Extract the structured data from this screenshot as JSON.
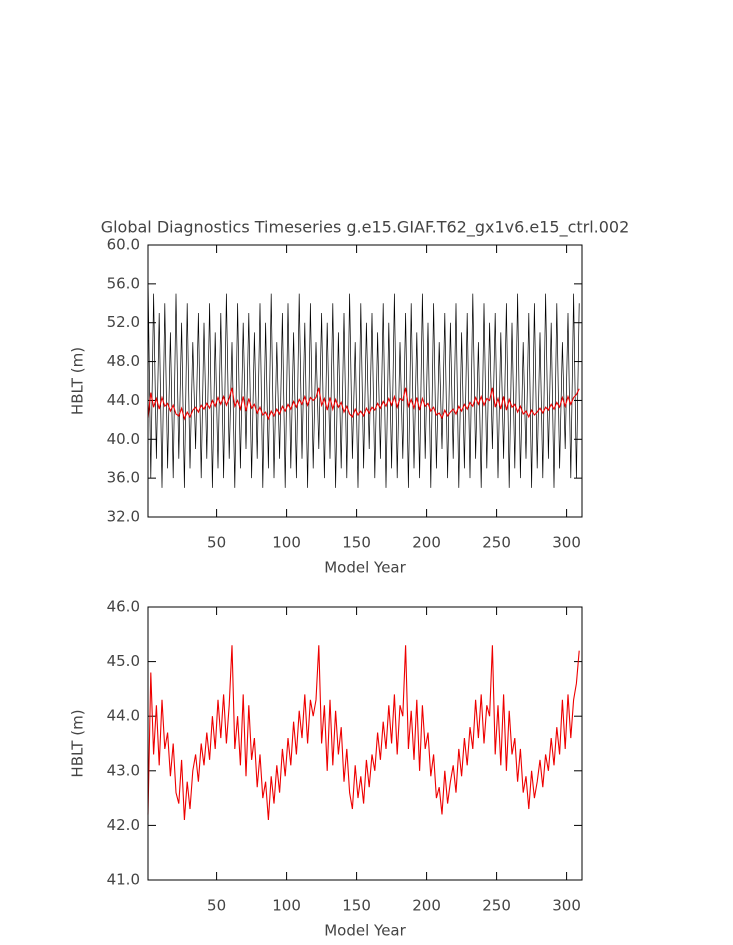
{
  "chart_data": [
    {
      "type": "line",
      "title": "Global Diagnostics Timeseries g.e15.GIAF.T62_gx1v6.e15_ctrl.002",
      "xlabel": "Model Year",
      "ylabel": "HBLT (m)",
      "xlim": [
        1,
        311
      ],
      "xticks": [
        50,
        100,
        150,
        200,
        250,
        300
      ],
      "ylim": [
        32,
        60
      ],
      "yticks": [
        {
          "value": 32,
          "label": "32.0"
        },
        {
          "value": 36,
          "label": "36.0"
        },
        {
          "value": 40,
          "label": "40.0"
        },
        {
          "value": 44,
          "label": "44.0"
        },
        {
          "value": 48,
          "label": "48.0"
        },
        {
          "value": 52,
          "label": "52.0"
        },
        {
          "value": 56,
          "label": "56.0"
        },
        {
          "value": 60,
          "label": "60.0"
        }
      ],
      "x": [
        1,
        3,
        5,
        7,
        9,
        11,
        13,
        15,
        17,
        19,
        21,
        23,
        25,
        27,
        29,
        31,
        33,
        35,
        37,
        39,
        41,
        43,
        45,
        47,
        49,
        51,
        53,
        55,
        57,
        59,
        61,
        63,
        65,
        67,
        69,
        71,
        73,
        75,
        77,
        79,
        81,
        83,
        85,
        87,
        89,
        91,
        93,
        95,
        97,
        99,
        101,
        103,
        105,
        107,
        109,
        111,
        113,
        115,
        117,
        119,
        121,
        123,
        125,
        127,
        129,
        131,
        133,
        135,
        137,
        139,
        141,
        143,
        145,
        147,
        149,
        151,
        153,
        155,
        157,
        159,
        161,
        163,
        165,
        167,
        169,
        171,
        173,
        175,
        177,
        179,
        181,
        183,
        185,
        187,
        189,
        191,
        193,
        195,
        197,
        199,
        201,
        203,
        205,
        207,
        209,
        211,
        213,
        215,
        217,
        219,
        221,
        223,
        225,
        227,
        229,
        231,
        233,
        235,
        237,
        239,
        241,
        243,
        245,
        247,
        249,
        251,
        253,
        255,
        257,
        259,
        261,
        263,
        265,
        267,
        269,
        271,
        273,
        275,
        277,
        279,
        281,
        283,
        285,
        287,
        289,
        291,
        293,
        295,
        297,
        299,
        301,
        303,
        305,
        307,
        309
      ],
      "series": [
        {
          "color": "#000000",
          "values": [
            57,
            36,
            55,
            38,
            53,
            35,
            54,
            37,
            51,
            36,
            55,
            38,
            52,
            35,
            54,
            37,
            50,
            39,
            53,
            36,
            52,
            38,
            54,
            35,
            51,
            37,
            53,
            36,
            55,
            38,
            50,
            35,
            54,
            37,
            52,
            39,
            53,
            36,
            51,
            38,
            54,
            35,
            52,
            37,
            55,
            36,
            50,
            38,
            53,
            35,
            54,
            37,
            51,
            36,
            55,
            38,
            52,
            35,
            54,
            37,
            50,
            39,
            53,
            36,
            52,
            38,
            54,
            35,
            51,
            37,
            53,
            36,
            55,
            38,
            50,
            35,
            54,
            37,
            52,
            39,
            53,
            36,
            51,
            38,
            54,
            35,
            52,
            37,
            55,
            36,
            50,
            38,
            53,
            35,
            54,
            37,
            51,
            36,
            55,
            38,
            52,
            35,
            54,
            37,
            50,
            39,
            53,
            36,
            52,
            38,
            54,
            35,
            51,
            37,
            53,
            36,
            55,
            38,
            50,
            35,
            54,
            37,
            52,
            39,
            53,
            36,
            51,
            38,
            54,
            35,
            52,
            37,
            55,
            36,
            50,
            38,
            53,
            35,
            54,
            37,
            51,
            36,
            55,
            38,
            52,
            35,
            54,
            37,
            50,
            39,
            53,
            36,
            55,
            36,
            54
          ]
        },
        {
          "color": "#ee0000",
          "values": [
            42.2,
            44.8,
            43.3,
            44.2,
            43.1,
            44.3,
            43.4,
            43.7,
            42.9,
            43.5,
            42.6,
            42.4,
            43.2,
            42.1,
            42.8,
            42.3,
            43.0,
            43.3,
            42.8,
            43.5,
            43.1,
            43.7,
            43.2,
            44.0,
            43.4,
            44.3,
            43.6,
            44.4,
            43.5,
            44.2,
            45.3,
            43.4,
            44.0,
            43.1,
            44.4,
            42.9,
            44.2,
            43.2,
            43.6,
            42.7,
            43.3,
            42.5,
            42.8,
            42.1,
            42.9,
            42.4,
            43.1,
            42.6,
            43.4,
            42.9,
            43.6,
            43.1,
            43.9,
            43.3,
            44.1,
            43.6,
            44.4,
            43.5,
            44.3,
            44.0,
            44.3,
            45.3,
            43.5,
            44.2,
            43.0,
            44.3,
            43.1,
            44.1,
            43.3,
            43.8,
            42.8,
            43.4,
            42.6,
            42.3,
            43.1,
            42.5,
            42.9,
            42.4,
            43.2,
            42.7,
            43.3,
            43.0,
            43.7,
            43.2,
            43.9,
            43.4,
            44.2,
            43.5,
            44.4,
            43.3,
            44.2,
            44.0,
            45.3,
            43.4,
            44.1,
            43.2,
            44.3,
            43.0,
            44.2,
            43.4,
            43.7,
            42.9,
            43.3,
            42.5,
            42.7,
            42.2,
            43.0,
            42.4,
            42.8,
            43.1,
            42.6,
            43.4,
            42.9,
            43.6,
            43.1,
            43.8,
            43.4,
            44.3,
            43.6,
            44.4,
            43.5,
            44.2,
            44.0,
            45.3,
            43.3,
            44.2,
            43.1,
            44.4,
            43.0,
            44.1,
            43.3,
            43.6,
            42.8,
            43.4,
            42.6,
            42.9,
            42.3,
            43.0,
            42.5,
            42.8,
            43.2,
            42.7,
            43.3,
            43.0,
            43.6,
            43.1,
            43.8,
            43.3,
            44.3,
            43.4,
            44.4,
            43.6,
            44.3,
            44.6,
            45.2
          ]
        }
      ]
    },
    {
      "type": "line",
      "xlabel": "Model Year",
      "ylabel": "HBLT (m)",
      "xlim": [
        1,
        311
      ],
      "xticks": [
        50,
        100,
        150,
        200,
        250,
        300
      ],
      "ylim": [
        41,
        46
      ],
      "yticks": [
        {
          "value": 41,
          "label": "41.0"
        },
        {
          "value": 42,
          "label": "42.0"
        },
        {
          "value": 43,
          "label": "43.0"
        },
        {
          "value": 44,
          "label": "44.0"
        },
        {
          "value": 45,
          "label": "45.0"
        },
        {
          "value": 46,
          "label": "46.0"
        }
      ],
      "x": [
        1,
        3,
        5,
        7,
        9,
        11,
        13,
        15,
        17,
        19,
        21,
        23,
        25,
        27,
        29,
        31,
        33,
        35,
        37,
        39,
        41,
        43,
        45,
        47,
        49,
        51,
        53,
        55,
        57,
        59,
        61,
        63,
        65,
        67,
        69,
        71,
        73,
        75,
        77,
        79,
        81,
        83,
        85,
        87,
        89,
        91,
        93,
        95,
        97,
        99,
        101,
        103,
        105,
        107,
        109,
        111,
        113,
        115,
        117,
        119,
        121,
        123,
        125,
        127,
        129,
        131,
        133,
        135,
        137,
        139,
        141,
        143,
        145,
        147,
        149,
        151,
        153,
        155,
        157,
        159,
        161,
        163,
        165,
        167,
        169,
        171,
        173,
        175,
        177,
        179,
        181,
        183,
        185,
        187,
        189,
        191,
        193,
        195,
        197,
        199,
        201,
        203,
        205,
        207,
        209,
        211,
        213,
        215,
        217,
        219,
        221,
        223,
        225,
        227,
        229,
        231,
        233,
        235,
        237,
        239,
        241,
        243,
        245,
        247,
        249,
        251,
        253,
        255,
        257,
        259,
        261,
        263,
        265,
        267,
        269,
        271,
        273,
        275,
        277,
        279,
        281,
        283,
        285,
        287,
        289,
        291,
        293,
        295,
        297,
        299,
        301,
        303,
        305,
        307,
        309
      ],
      "series": [
        {
          "color": "#ee0000",
          "values": [
            42.2,
            44.8,
            43.3,
            44.2,
            43.1,
            44.3,
            43.4,
            43.7,
            42.9,
            43.5,
            42.6,
            42.4,
            43.2,
            42.1,
            42.8,
            42.3,
            43.0,
            43.3,
            42.8,
            43.5,
            43.1,
            43.7,
            43.2,
            44.0,
            43.4,
            44.3,
            43.6,
            44.4,
            43.5,
            44.2,
            45.3,
            43.4,
            44.0,
            43.1,
            44.4,
            42.9,
            44.2,
            43.2,
            43.6,
            42.7,
            43.3,
            42.5,
            42.8,
            42.1,
            42.9,
            42.4,
            43.1,
            42.6,
            43.4,
            42.9,
            43.6,
            43.1,
            43.9,
            43.3,
            44.1,
            43.6,
            44.4,
            43.5,
            44.3,
            44.0,
            44.3,
            45.3,
            43.5,
            44.2,
            43.0,
            44.3,
            43.1,
            44.1,
            43.3,
            43.8,
            42.8,
            43.4,
            42.6,
            42.3,
            43.1,
            42.5,
            42.9,
            42.4,
            43.2,
            42.7,
            43.3,
            43.0,
            43.7,
            43.2,
            43.9,
            43.4,
            44.2,
            43.5,
            44.4,
            43.3,
            44.2,
            44.0,
            45.3,
            43.4,
            44.1,
            43.2,
            44.3,
            43.0,
            44.2,
            43.4,
            43.7,
            42.9,
            43.3,
            42.5,
            42.7,
            42.2,
            43.0,
            42.4,
            42.8,
            43.1,
            42.6,
            43.4,
            42.9,
            43.6,
            43.1,
            43.8,
            43.4,
            44.3,
            43.6,
            44.4,
            43.5,
            44.2,
            44.0,
            45.3,
            43.3,
            44.2,
            43.1,
            44.4,
            43.0,
            44.1,
            43.3,
            43.6,
            42.8,
            43.4,
            42.6,
            42.9,
            42.3,
            43.0,
            42.5,
            42.8,
            43.2,
            42.7,
            43.3,
            43.0,
            43.6,
            43.1,
            43.8,
            43.3,
            44.3,
            43.4,
            44.4,
            43.6,
            44.3,
            44.6,
            45.2
          ]
        }
      ]
    }
  ]
}
